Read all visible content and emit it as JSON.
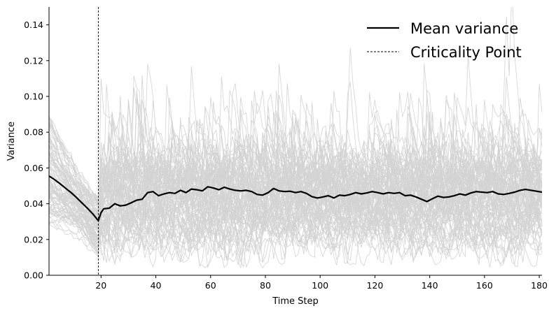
{
  "chart_data": {
    "type": "line",
    "xlabel": "Time Step",
    "ylabel": "Variance",
    "xlim": [
      1,
      181
    ],
    "ylim": [
      0,
      0.15
    ],
    "x_ticks": [
      20,
      40,
      60,
      80,
      100,
      120,
      140,
      160,
      180
    ],
    "y_ticks": [
      0.0,
      0.02,
      0.04,
      0.06,
      0.08,
      0.1,
      0.12,
      0.14
    ],
    "x_tick_labels": [
      "20",
      "40",
      "60",
      "80",
      "100",
      "120",
      "140",
      "160",
      "180"
    ],
    "y_tick_labels": [
      "0.00",
      "0.02",
      "0.04",
      "0.06",
      "0.08",
      "0.10",
      "0.12",
      "0.14"
    ],
    "criticality_x": 19,
    "legend_position": "top-right",
    "legend": [
      {
        "label": "Mean variance",
        "style": "solid"
      },
      {
        "label": "Criticality Point",
        "style": "dashed"
      }
    ],
    "series": [
      {
        "name": "Mean variance",
        "color": "#000000",
        "x": [
          1,
          3,
          5,
          7,
          9,
          11,
          13,
          15,
          17,
          19,
          20,
          21,
          23,
          25,
          27,
          29,
          31,
          33,
          35,
          37,
          39,
          41,
          43,
          45,
          47,
          49,
          51,
          53,
          55,
          57,
          59,
          61,
          63,
          65,
          67,
          69,
          71,
          73,
          75,
          77,
          79,
          81,
          83,
          85,
          87,
          89,
          91,
          93,
          95,
          97,
          99,
          101,
          103,
          105,
          107,
          109,
          111,
          113,
          115,
          117,
          119,
          121,
          123,
          125,
          127,
          129,
          131,
          133,
          135,
          137,
          139,
          141,
          143,
          145,
          147,
          149,
          151,
          153,
          155,
          157,
          159,
          161,
          163,
          165,
          167,
          169,
          171,
          173,
          175,
          177,
          179,
          181
        ],
        "values": [
          0.0555,
          0.0535,
          0.0512,
          0.0487,
          0.0463,
          0.0435,
          0.0405,
          0.0375,
          0.0343,
          0.0305,
          0.035,
          0.0372,
          0.0375,
          0.04,
          0.0388,
          0.0392,
          0.0405,
          0.042,
          0.0425,
          0.0462,
          0.0468,
          0.0445,
          0.0455,
          0.0462,
          0.0458,
          0.0475,
          0.0462,
          0.0482,
          0.0478,
          0.0472,
          0.0495,
          0.0488,
          0.0478,
          0.0492,
          0.0482,
          0.0475,
          0.0472,
          0.0475,
          0.0468,
          0.0452,
          0.0448,
          0.0462,
          0.0485,
          0.0472,
          0.0468,
          0.047,
          0.0462,
          0.0468,
          0.0458,
          0.044,
          0.0432,
          0.0438,
          0.0445,
          0.0432,
          0.0448,
          0.0445,
          0.0452,
          0.0462,
          0.0455,
          0.046,
          0.0468,
          0.0462,
          0.0455,
          0.0462,
          0.0458,
          0.0462,
          0.0445,
          0.0448,
          0.0438,
          0.0425,
          0.0412,
          0.0428,
          0.0442,
          0.0435,
          0.0438,
          0.0445,
          0.0455,
          0.0448,
          0.046,
          0.0468,
          0.0465,
          0.0462,
          0.0468,
          0.0455,
          0.0452,
          0.0458,
          0.0465,
          0.0475,
          0.048,
          0.0475,
          0.047,
          0.0465
        ]
      }
    ]
  }
}
